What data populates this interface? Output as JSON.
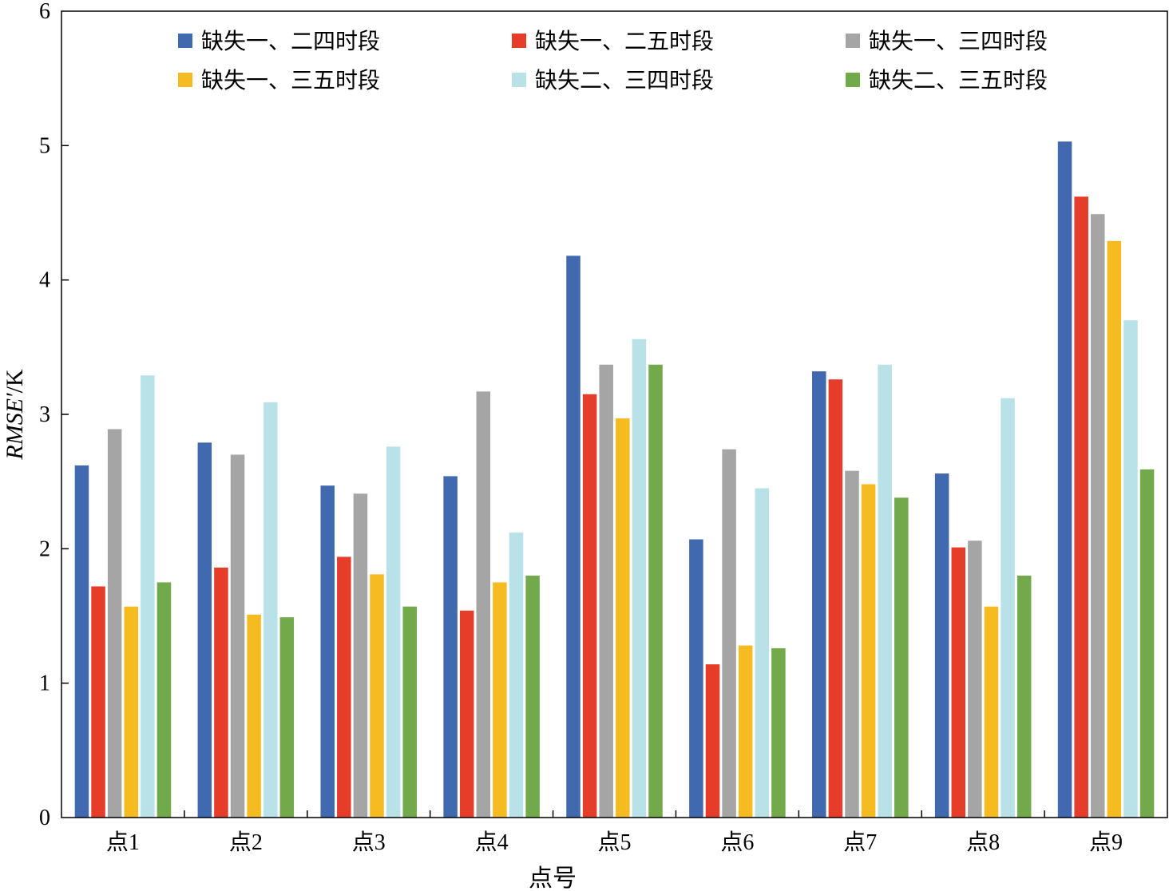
{
  "chart_data": {
    "type": "bar",
    "title": "",
    "xlabel": "点号",
    "ylabel": {
      "italic": "RMSE′",
      "unit": "/K"
    },
    "ylim": [
      0,
      6
    ],
    "yticks": [
      "0",
      "1",
      "2",
      "3",
      "4",
      "5",
      "6"
    ],
    "categories": [
      "点1",
      "点2",
      "点3",
      "点4",
      "点5",
      "点6",
      "点7",
      "点8",
      "点9"
    ],
    "series": [
      {
        "name": "缺失一、二四时段",
        "color": "#4169b0",
        "values": [
          2.62,
          2.79,
          2.47,
          2.54,
          4.18,
          2.07,
          3.32,
          2.56,
          5.03
        ]
      },
      {
        "name": "缺失一、二五时段",
        "color": "#e63c2a",
        "values": [
          1.72,
          1.86,
          1.94,
          1.54,
          3.15,
          1.14,
          3.26,
          2.01,
          4.62
        ]
      },
      {
        "name": "缺失一、三四时段",
        "color": "#a5a5a5",
        "values": [
          2.89,
          2.7,
          2.41,
          3.17,
          3.37,
          2.74,
          2.58,
          2.06,
          4.49
        ]
      },
      {
        "name": "缺失一、三五时段",
        "color": "#f6bb21",
        "values": [
          1.57,
          1.51,
          1.81,
          1.75,
          2.97,
          1.28,
          2.48,
          1.57,
          4.29
        ]
      },
      {
        "name": "缺失二、三四时段",
        "color": "#b8e2e8",
        "values": [
          3.29,
          3.09,
          2.76,
          2.12,
          3.56,
          2.45,
          3.37,
          3.12,
          3.7
        ]
      },
      {
        "name": "缺失二、三五时段",
        "color": "#72a94b",
        "values": [
          1.75,
          1.49,
          1.57,
          1.8,
          3.37,
          1.26,
          2.38,
          1.8,
          2.59
        ]
      }
    ],
    "legend_position": "top"
  }
}
